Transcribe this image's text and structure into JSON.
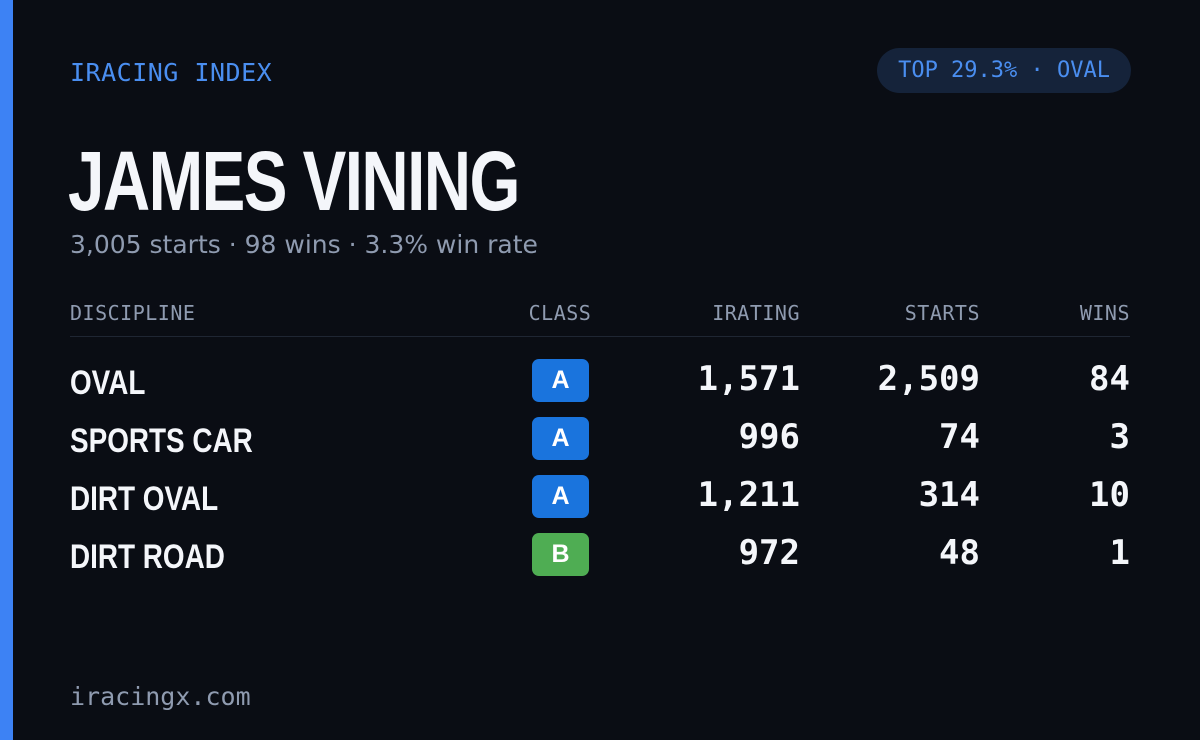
{
  "brand": "IRACING INDEX",
  "rank_pill": "TOP 29.3% · OVAL",
  "driver": {
    "name": "JAMES VINING",
    "summary": "3,005 starts · 98 wins · 3.3% win rate"
  },
  "table": {
    "headers": {
      "discipline": "DISCIPLINE",
      "class": "CLASS",
      "irating": "IRATING",
      "starts": "STARTS",
      "wins": "WINS"
    },
    "rows": [
      {
        "discipline": "OVAL",
        "class": "A",
        "irating": "1,571",
        "starts": "2,509",
        "wins": "84"
      },
      {
        "discipline": "SPORTS CAR",
        "class": "A",
        "irating": "996",
        "starts": "74",
        "wins": "3"
      },
      {
        "discipline": "DIRT OVAL",
        "class": "A",
        "irating": "1,211",
        "starts": "314",
        "wins": "10"
      },
      {
        "discipline": "DIRT ROAD",
        "class": "B",
        "irating": "972",
        "starts": "48",
        "wins": "1"
      }
    ]
  },
  "class_colors": {
    "A": "#1a74dd",
    "B": "#4fad53"
  },
  "footer": "iracingx.com"
}
